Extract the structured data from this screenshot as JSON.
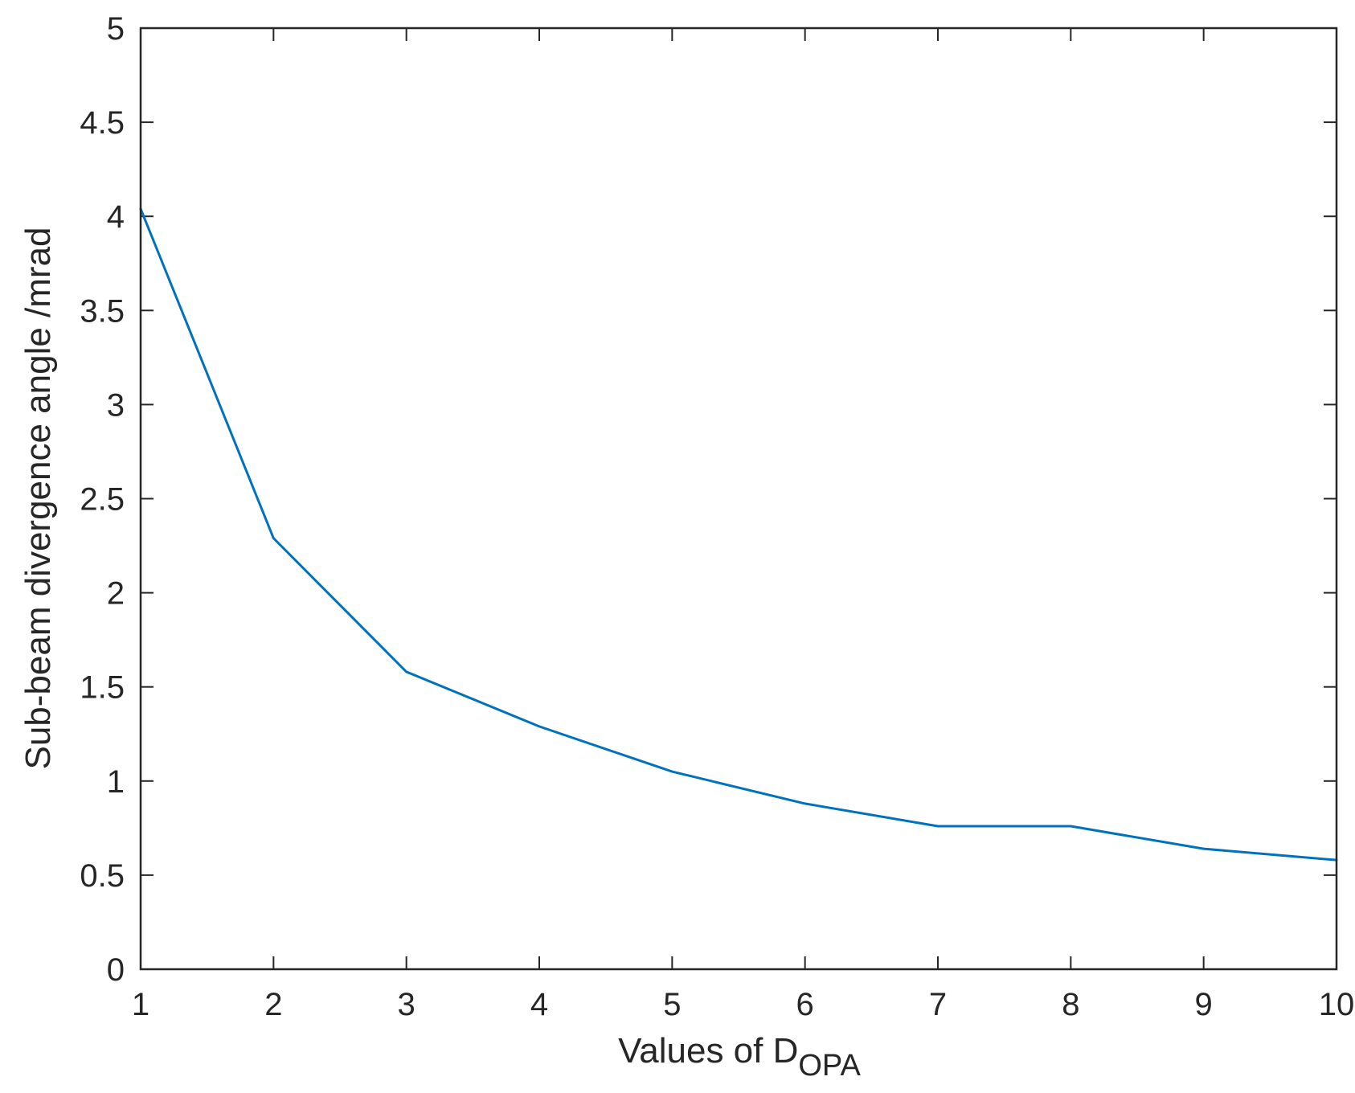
{
  "chart_data": {
    "type": "line",
    "title": "",
    "xlabel": {
      "main": "Values of D",
      "subscript": "OPA"
    },
    "ylabel": "Sub-beam divergence angle /mrad",
    "xlim": [
      1,
      10
    ],
    "ylim": [
      0,
      5
    ],
    "xticks": [
      1,
      2,
      3,
      4,
      5,
      6,
      7,
      8,
      9,
      10
    ],
    "yticks": [
      0,
      0.5,
      1,
      1.5,
      2,
      2.5,
      3,
      3.5,
      4,
      4.5,
      5
    ],
    "grid": false,
    "box": true,
    "series": [
      {
        "color": "#0072BD",
        "x": [
          1,
          2,
          3,
          4,
          5,
          6,
          7,
          8,
          9,
          10
        ],
        "y": [
          4.04,
          2.29,
          1.58,
          1.29,
          1.05,
          0.88,
          0.76,
          0.76,
          0.64,
          0.58
        ]
      }
    ]
  }
}
